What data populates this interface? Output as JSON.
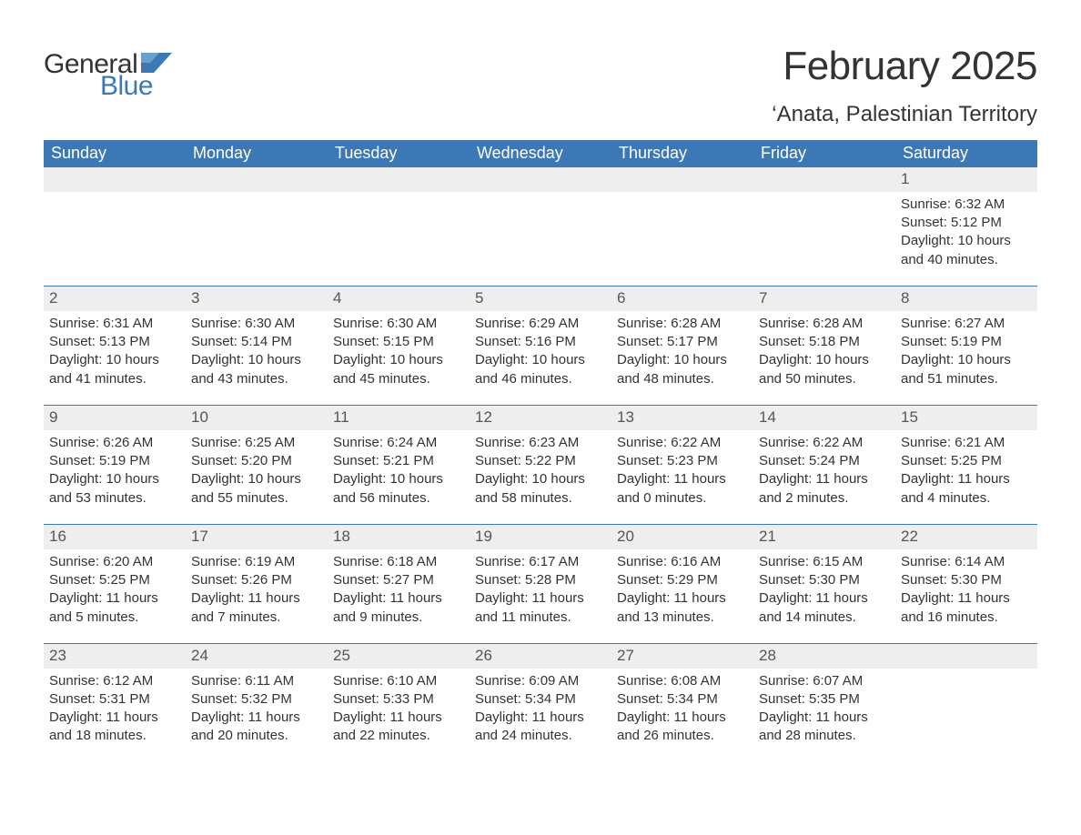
{
  "logo": {
    "text1": "General",
    "text2": "Blue",
    "flag_color": "#3b78b5"
  },
  "title": "February 2025",
  "location": "‘Anata, Palestinian Territory",
  "header_bg": "#3b78b5",
  "header_text_color": "#ffffff",
  "daynum_bg": "#eeeeee",
  "row_border_color": "#3b78b5",
  "weekdays": [
    "Sunday",
    "Monday",
    "Tuesday",
    "Wednesday",
    "Thursday",
    "Friday",
    "Saturday"
  ],
  "weeks": [
    [
      null,
      null,
      null,
      null,
      null,
      null,
      {
        "d": "1",
        "sunrise": "6:32 AM",
        "sunset": "5:12 PM",
        "dl1": "Daylight: 10 hours",
        "dl2": "and 40 minutes."
      }
    ],
    [
      {
        "d": "2",
        "sunrise": "6:31 AM",
        "sunset": "5:13 PM",
        "dl1": "Daylight: 10 hours",
        "dl2": "and 41 minutes."
      },
      {
        "d": "3",
        "sunrise": "6:30 AM",
        "sunset": "5:14 PM",
        "dl1": "Daylight: 10 hours",
        "dl2": "and 43 minutes."
      },
      {
        "d": "4",
        "sunrise": "6:30 AM",
        "sunset": "5:15 PM",
        "dl1": "Daylight: 10 hours",
        "dl2": "and 45 minutes."
      },
      {
        "d": "5",
        "sunrise": "6:29 AM",
        "sunset": "5:16 PM",
        "dl1": "Daylight: 10 hours",
        "dl2": "and 46 minutes."
      },
      {
        "d": "6",
        "sunrise": "6:28 AM",
        "sunset": "5:17 PM",
        "dl1": "Daylight: 10 hours",
        "dl2": "and 48 minutes."
      },
      {
        "d": "7",
        "sunrise": "6:28 AM",
        "sunset": "5:18 PM",
        "dl1": "Daylight: 10 hours",
        "dl2": "and 50 minutes."
      },
      {
        "d": "8",
        "sunrise": "6:27 AM",
        "sunset": "5:19 PM",
        "dl1": "Daylight: 10 hours",
        "dl2": "and 51 minutes."
      }
    ],
    [
      {
        "d": "9",
        "sunrise": "6:26 AM",
        "sunset": "5:19 PM",
        "dl1": "Daylight: 10 hours",
        "dl2": "and 53 minutes."
      },
      {
        "d": "10",
        "sunrise": "6:25 AM",
        "sunset": "5:20 PM",
        "dl1": "Daylight: 10 hours",
        "dl2": "and 55 minutes."
      },
      {
        "d": "11",
        "sunrise": "6:24 AM",
        "sunset": "5:21 PM",
        "dl1": "Daylight: 10 hours",
        "dl2": "and 56 minutes."
      },
      {
        "d": "12",
        "sunrise": "6:23 AM",
        "sunset": "5:22 PM",
        "dl1": "Daylight: 10 hours",
        "dl2": "and 58 minutes."
      },
      {
        "d": "13",
        "sunrise": "6:22 AM",
        "sunset": "5:23 PM",
        "dl1": "Daylight: 11 hours",
        "dl2": "and 0 minutes."
      },
      {
        "d": "14",
        "sunrise": "6:22 AM",
        "sunset": "5:24 PM",
        "dl1": "Daylight: 11 hours",
        "dl2": "and 2 minutes."
      },
      {
        "d": "15",
        "sunrise": "6:21 AM",
        "sunset": "5:25 PM",
        "dl1": "Daylight: 11 hours",
        "dl2": "and 4 minutes."
      }
    ],
    [
      {
        "d": "16",
        "sunrise": "6:20 AM",
        "sunset": "5:25 PM",
        "dl1": "Daylight: 11 hours",
        "dl2": "and 5 minutes."
      },
      {
        "d": "17",
        "sunrise": "6:19 AM",
        "sunset": "5:26 PM",
        "dl1": "Daylight: 11 hours",
        "dl2": "and 7 minutes."
      },
      {
        "d": "18",
        "sunrise": "6:18 AM",
        "sunset": "5:27 PM",
        "dl1": "Daylight: 11 hours",
        "dl2": "and 9 minutes."
      },
      {
        "d": "19",
        "sunrise": "6:17 AM",
        "sunset": "5:28 PM",
        "dl1": "Daylight: 11 hours",
        "dl2": "and 11 minutes."
      },
      {
        "d": "20",
        "sunrise": "6:16 AM",
        "sunset": "5:29 PM",
        "dl1": "Daylight: 11 hours",
        "dl2": "and 13 minutes."
      },
      {
        "d": "21",
        "sunrise": "6:15 AM",
        "sunset": "5:30 PM",
        "dl1": "Daylight: 11 hours",
        "dl2": "and 14 minutes."
      },
      {
        "d": "22",
        "sunrise": "6:14 AM",
        "sunset": "5:30 PM",
        "dl1": "Daylight: 11 hours",
        "dl2": "and 16 minutes."
      }
    ],
    [
      {
        "d": "23",
        "sunrise": "6:12 AM",
        "sunset": "5:31 PM",
        "dl1": "Daylight: 11 hours",
        "dl2": "and 18 minutes."
      },
      {
        "d": "24",
        "sunrise": "6:11 AM",
        "sunset": "5:32 PM",
        "dl1": "Daylight: 11 hours",
        "dl2": "and 20 minutes."
      },
      {
        "d": "25",
        "sunrise": "6:10 AM",
        "sunset": "5:33 PM",
        "dl1": "Daylight: 11 hours",
        "dl2": "and 22 minutes."
      },
      {
        "d": "26",
        "sunrise": "6:09 AM",
        "sunset": "5:34 PM",
        "dl1": "Daylight: 11 hours",
        "dl2": "and 24 minutes."
      },
      {
        "d": "27",
        "sunrise": "6:08 AM",
        "sunset": "5:34 PM",
        "dl1": "Daylight: 11 hours",
        "dl2": "and 26 minutes."
      },
      {
        "d": "28",
        "sunrise": "6:07 AM",
        "sunset": "5:35 PM",
        "dl1": "Daylight: 11 hours",
        "dl2": "and 28 minutes."
      },
      null
    ]
  ]
}
